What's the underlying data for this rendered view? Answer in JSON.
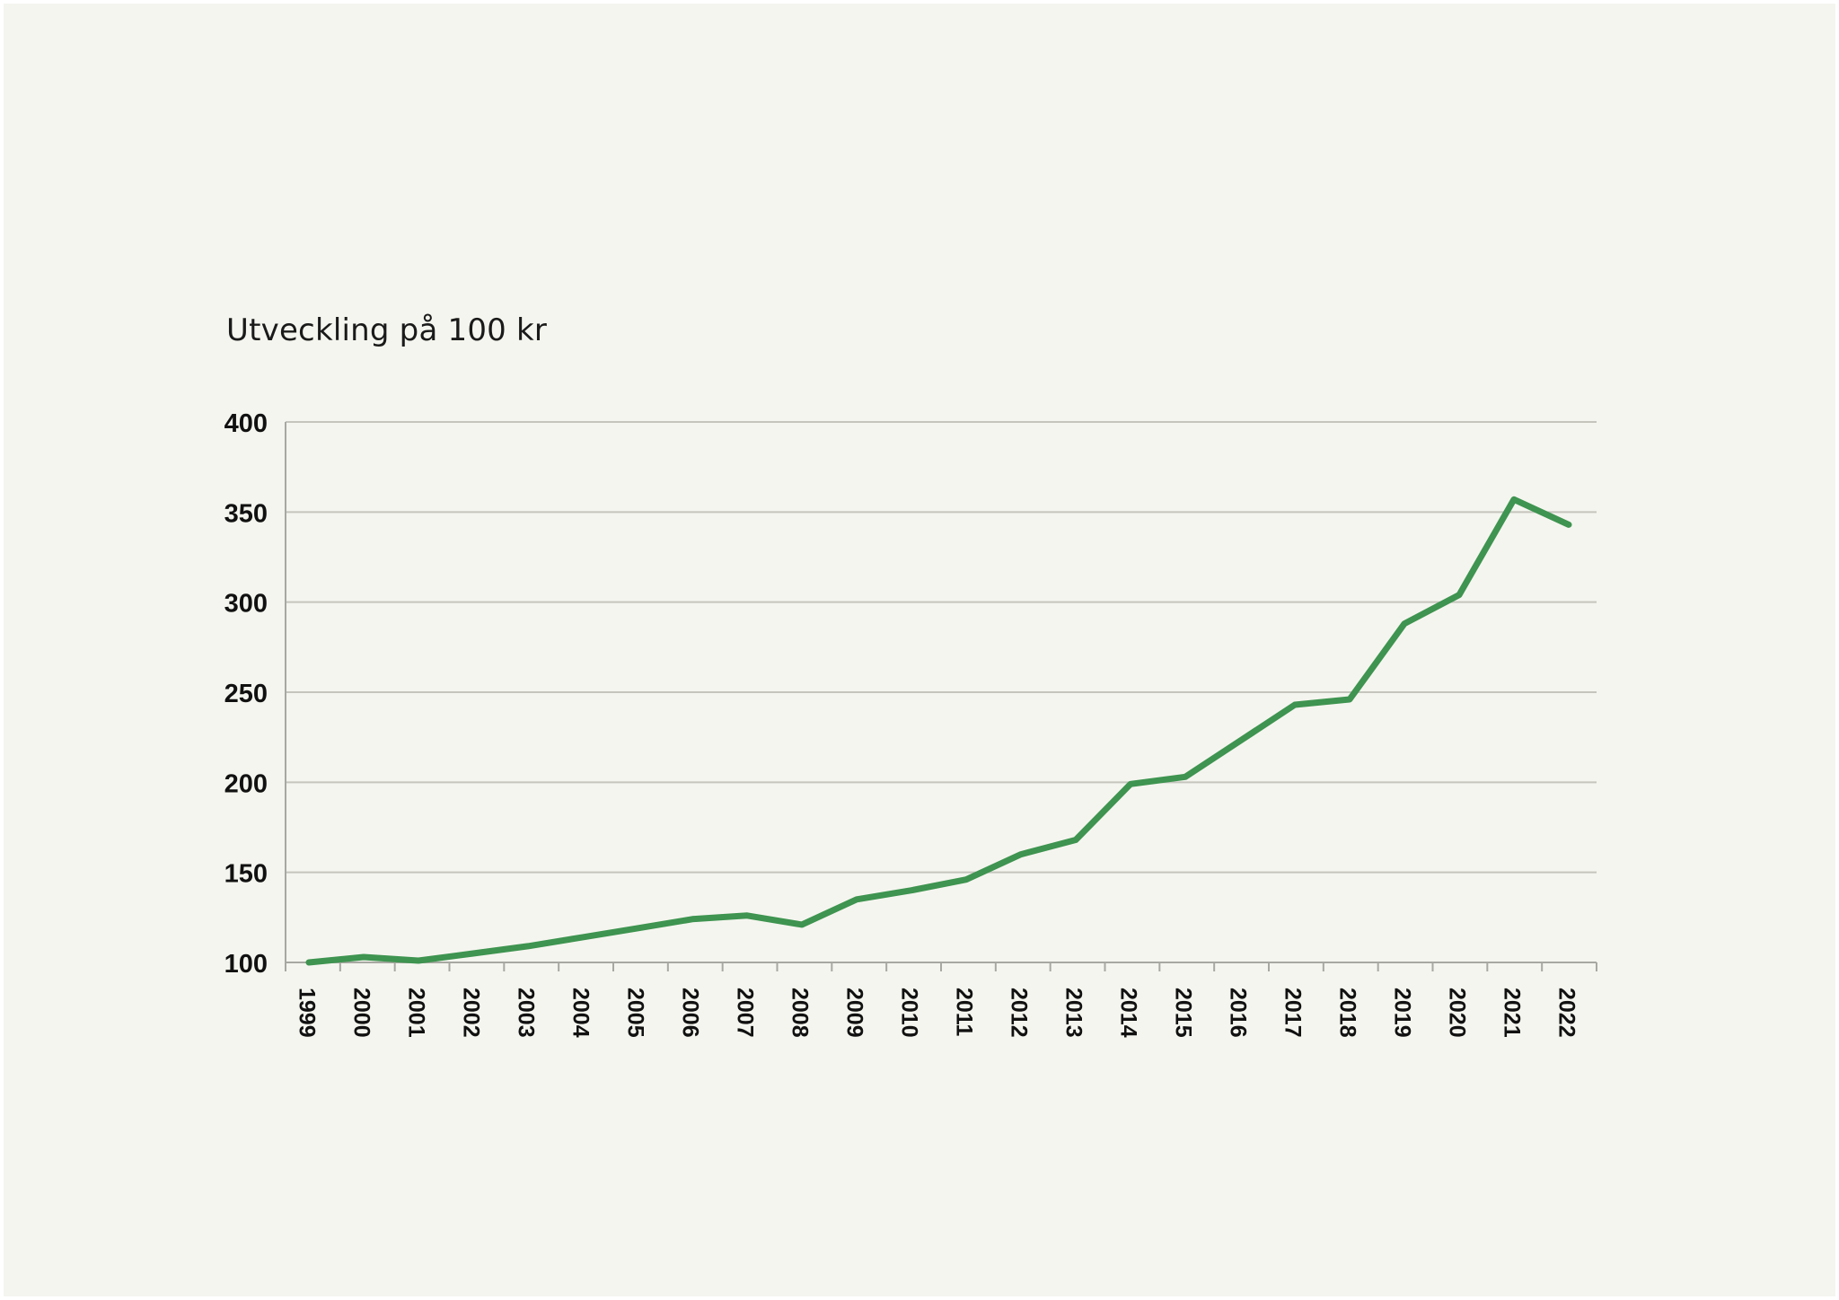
{
  "chart_data": {
    "type": "line",
    "title": "Utveckling på 100 kr",
    "xlabel": "",
    "ylabel": "",
    "ylim": [
      100,
      400
    ],
    "yticks": [
      100,
      150,
      200,
      250,
      300,
      350,
      400
    ],
    "grid": true,
    "categories": [
      "1999",
      "2000",
      "2001",
      "2002",
      "2003",
      "2004",
      "2005",
      "2006",
      "2007",
      "2008",
      "2009",
      "2010",
      "2011",
      "2012",
      "2013",
      "2014",
      "2015",
      "2016",
      "2017",
      "2018",
      "2019",
      "2020",
      "2021",
      "2022"
    ],
    "series": [
      {
        "values": [
          100,
          103,
          101,
          105,
          109,
          114,
          119,
          124,
          126,
          121,
          135,
          140,
          146,
          160,
          168,
          199,
          203,
          223,
          243,
          246,
          288,
          304,
          357,
          343
        ]
      }
    ],
    "colors": {
      "line": "#3e9450",
      "grid": "#c5c5be",
      "axis": "#a8a8a2"
    }
  }
}
